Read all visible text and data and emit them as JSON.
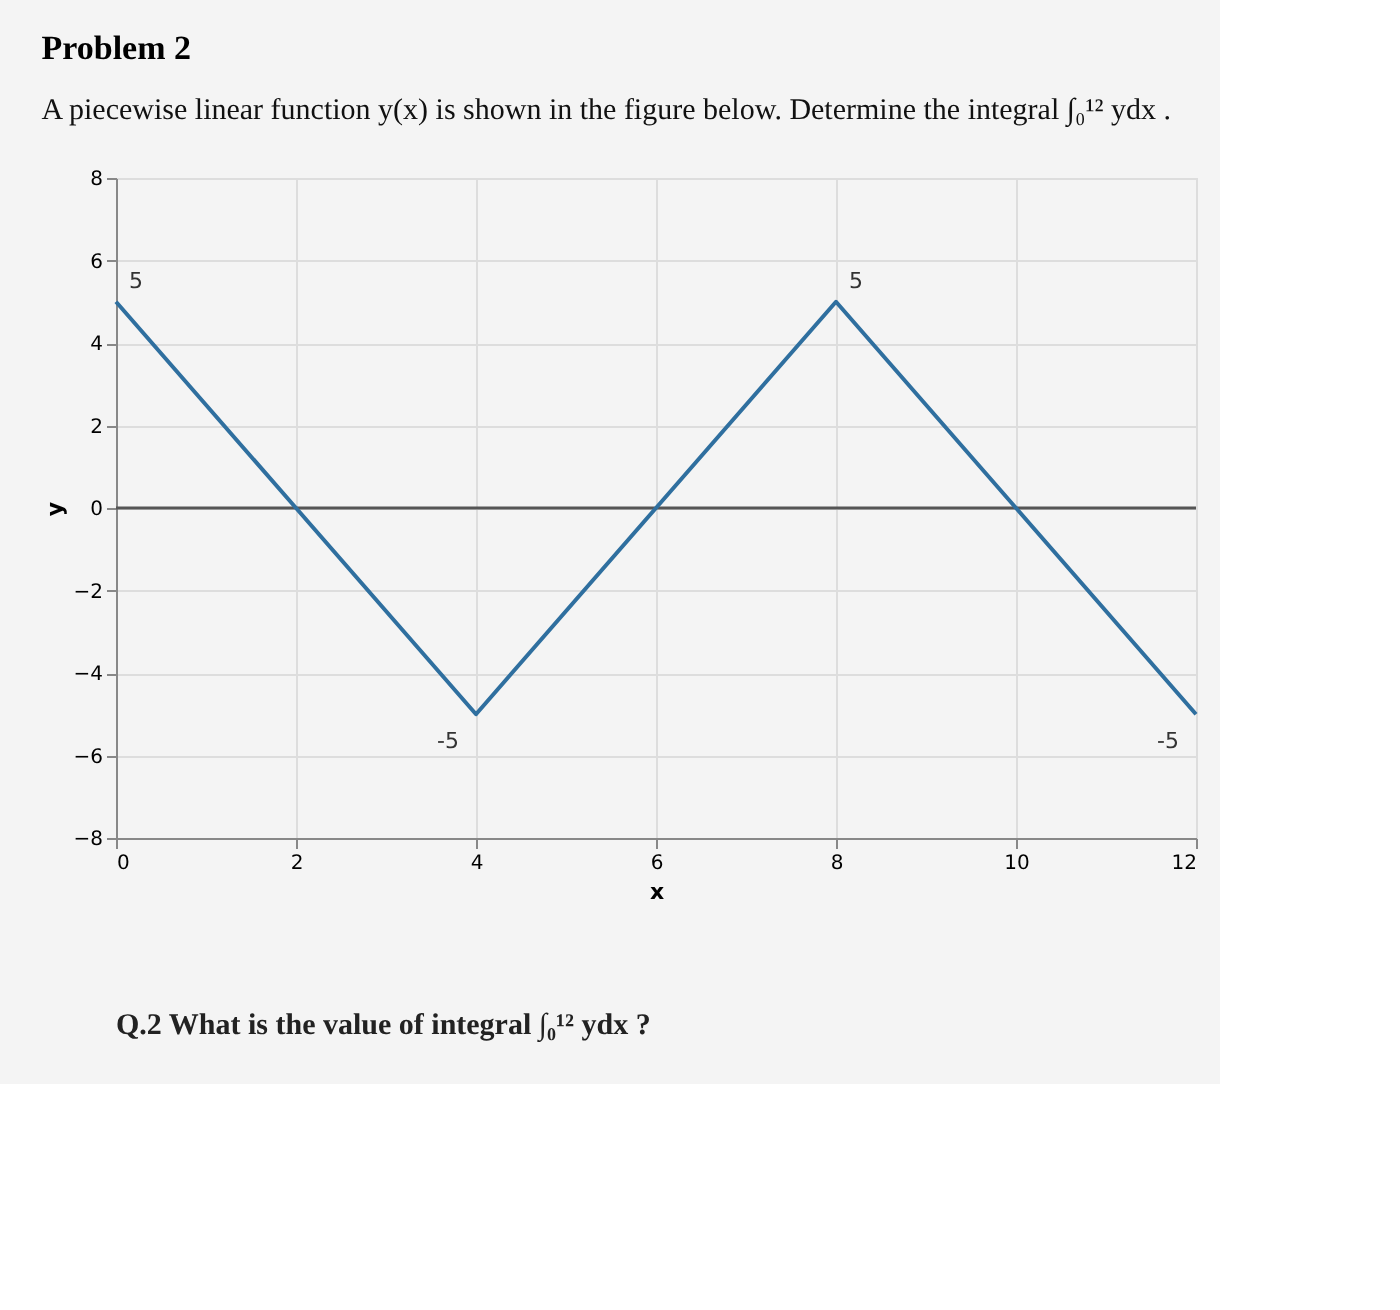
{
  "chart_data": {
    "type": "line",
    "title": "Problem 2",
    "subtitle": "A piecewise linear function y(x) is shown in the figure below. Determine the integral ∫₀¹² ydx .",
    "xlabel": "x",
    "ylabel": "y",
    "x": [
      0,
      2,
      4,
      6,
      8,
      10,
      12
    ],
    "series": [
      {
        "color": "#2f6f9f",
        "values": [
          5,
          0,
          -5,
          0,
          5,
          0,
          -5
        ],
        "value_labels": [
          "5",
          null,
          "-5",
          null,
          "5",
          null,
          "-5"
        ]
      }
    ],
    "xlim": [
      0,
      12
    ],
    "xticks": [
      0,
      2,
      4,
      6,
      8,
      10,
      12
    ],
    "ylim": [
      -8,
      8
    ],
    "yticks": [
      -8,
      -6,
      -4,
      -2,
      0,
      2,
      4,
      6,
      8
    ],
    "grid": true,
    "marker": "none",
    "line_style": "solid",
    "ref_lines": [
      {
        "axis": "y",
        "value": 0,
        "color": "#555555"
      }
    ],
    "annotations": [
      "Q.2 What is the value of integral ∫₀¹² ydx ?"
    ]
  }
}
